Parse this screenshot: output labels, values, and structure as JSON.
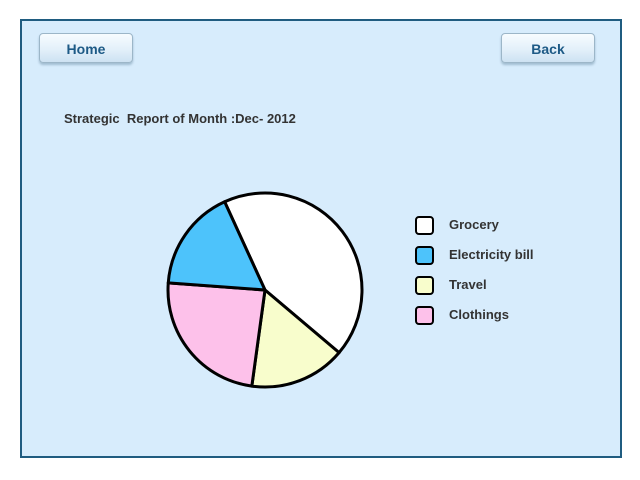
{
  "nav": {
    "home_label": "Home",
    "back_label": "Back"
  },
  "report": {
    "title": "Strategic  Report of Month :Dec- 2012"
  },
  "colors": {
    "frame_background": "#d7ecfc",
    "frame_border": "#1f5c80",
    "button_text": "#1d5a86"
  },
  "chart_data": {
    "type": "pie",
    "categories": [
      "Grocery",
      "Electricity bill",
      "Travel",
      "Clothings"
    ],
    "values": [
      43,
      17,
      16,
      24
    ],
    "colors": [
      "#ffffff",
      "#4dc3fb",
      "#f8fdcc",
      "#fdc1ea"
    ],
    "legend_position": "right"
  }
}
